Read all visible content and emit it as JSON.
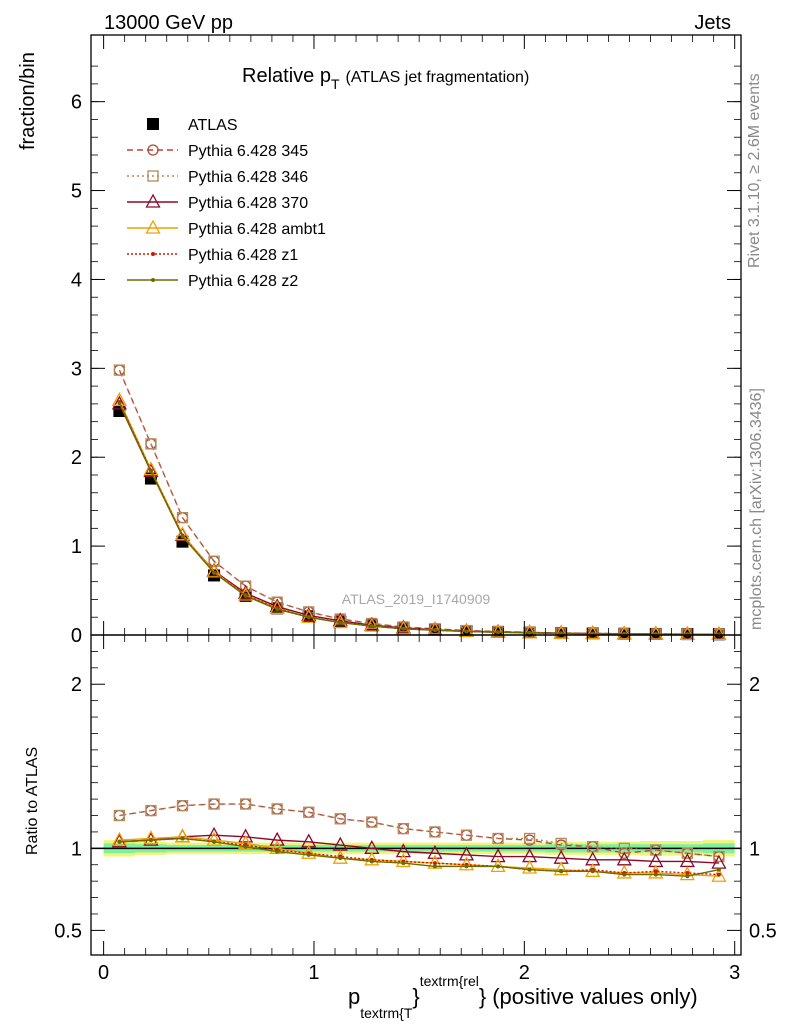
{
  "header": {
    "left": "13000 GeV pp",
    "right": "Jets"
  },
  "side_labels": {
    "rivet": "Rivet 3.1.10, ≥ 2.6M events",
    "mcplots": "mcplots.cern.ch [arXiv:1306.3436]"
  },
  "chart_data": [
    {
      "type": "line",
      "panel": "main",
      "title_main": "Relative p",
      "title_sub": "T",
      "title_extra": "(ATLAS jet fragmentation)",
      "watermark": "ATLAS_2019_I1740909",
      "ylabel": "fraction/bin",
      "ylim": [
        0,
        6.75
      ],
      "yticks": [
        0,
        1,
        2,
        3,
        4,
        5,
        6
      ],
      "yticklabels": [
        "0",
        "1",
        "2",
        "3",
        "4",
        "5",
        "6"
      ],
      "xlim": [
        -0.06,
        3.03
      ],
      "legend_position": "top-left",
      "x": [
        0.075,
        0.225,
        0.375,
        0.525,
        0.675,
        0.825,
        0.975,
        1.125,
        1.275,
        1.425,
        1.575,
        1.725,
        1.875,
        2.025,
        2.175,
        2.325,
        2.475,
        2.625,
        2.775,
        2.925
      ],
      "series": [
        {
          "name": "ATLAS",
          "color": "#000000",
          "marker": "square",
          "dash": "none",
          "values": [
            2.52,
            1.76,
            1.05,
            0.67,
            0.44,
            0.3,
            0.21,
            0.15,
            0.11,
            0.08,
            0.06,
            0.045,
            0.035,
            0.028,
            0.022,
            0.018,
            0.014,
            0.012,
            0.01,
            0.008
          ]
        },
        {
          "name": "Pythia 6.428 345",
          "color": "#b5473a",
          "marker": "circle-open",
          "dash": "6,4",
          "values": [
            2.98,
            2.15,
            1.32,
            0.83,
            0.55,
            0.37,
            0.26,
            0.18,
            0.13,
            0.09,
            0.07,
            0.05,
            0.04,
            0.03,
            0.023,
            0.019,
            0.014,
            0.012,
            0.01,
            0.008
          ]
        },
        {
          "name": "Pythia 6.428 346",
          "color": "#b08a5a",
          "marker": "square-open",
          "dash": "2,3",
          "values": [
            2.98,
            2.15,
            1.32,
            0.83,
            0.55,
            0.37,
            0.26,
            0.18,
            0.13,
            0.09,
            0.07,
            0.05,
            0.04,
            0.03,
            0.023,
            0.018,
            0.014,
            0.012,
            0.01,
            0.008
          ]
        },
        {
          "name": "Pythia 6.428 370",
          "color": "#8b0a2a",
          "marker": "triangle-open",
          "dash": "none",
          "values": [
            2.6,
            1.84,
            1.12,
            0.72,
            0.47,
            0.32,
            0.22,
            0.16,
            0.11,
            0.08,
            0.06,
            0.043,
            0.033,
            0.027,
            0.021,
            0.017,
            0.013,
            0.011,
            0.009,
            0.007
          ]
        },
        {
          "name": "Pythia 6.428 ambt1",
          "color": "#f0a000",
          "marker": "triangle-open",
          "dash": "none",
          "values": [
            2.64,
            1.86,
            1.13,
            0.71,
            0.45,
            0.3,
            0.2,
            0.14,
            0.1,
            0.07,
            0.055,
            0.04,
            0.031,
            0.024,
            0.019,
            0.015,
            0.012,
            0.01,
            0.008,
            0.007
          ]
        },
        {
          "name": "Pythia 6.428 z1",
          "color": "#cc1a00",
          "marker": "dot",
          "dash": "2,2",
          "values": [
            2.62,
            1.85,
            1.12,
            0.7,
            0.45,
            0.3,
            0.2,
            0.14,
            0.1,
            0.07,
            0.055,
            0.04,
            0.031,
            0.024,
            0.019,
            0.015,
            0.012,
            0.01,
            0.008,
            0.007
          ]
        },
        {
          "name": "Pythia 6.428 z2",
          "color": "#6b6b00",
          "marker": "dot",
          "dash": "none",
          "values": [
            2.61,
            1.84,
            1.11,
            0.7,
            0.44,
            0.29,
            0.2,
            0.14,
            0.1,
            0.07,
            0.053,
            0.04,
            0.031,
            0.024,
            0.019,
            0.015,
            0.012,
            0.01,
            0.008,
            0.007
          ]
        }
      ]
    },
    {
      "type": "line",
      "panel": "ratio",
      "ylabel": "Ratio to ATLAS",
      "ylim": [
        0.35,
        2.3
      ],
      "yticks": [
        0.5,
        1,
        2
      ],
      "yticklabels": [
        "0.5",
        "1",
        "2"
      ],
      "xlim": [
        -0.06,
        3.03
      ],
      "xticks": [
        0,
        1,
        2,
        3
      ],
      "xticklabels": [
        "0",
        "1",
        "2",
        "3"
      ],
      "xlabel_main": "p",
      "xlabel_sub": "textrm{T",
      "xlabel_sup": "textrm{rel",
      "xlabel_brace1": "}",
      "xlabel_brace2": "}",
      "xlabel_rest": "(positive values only)",
      "band_inner_color": "#7ff0a0",
      "band_outer_color": "#f0f57a",
      "x": [
        0.075,
        0.225,
        0.375,
        0.525,
        0.675,
        0.825,
        0.975,
        1.125,
        1.275,
        1.425,
        1.575,
        1.725,
        1.875,
        2.025,
        2.175,
        2.325,
        2.475,
        2.625,
        2.775,
        2.925
      ],
      "band_inner": [
        0.03,
        0.025,
        0.02,
        0.02,
        0.02,
        0.02,
        0.02,
        0.02,
        0.02,
        0.02,
        0.02,
        0.02,
        0.02,
        0.02,
        0.025,
        0.025,
        0.025,
        0.025,
        0.025,
        0.03
      ],
      "band_outer": [
        0.05,
        0.04,
        0.035,
        0.035,
        0.035,
        0.035,
        0.035,
        0.035,
        0.035,
        0.035,
        0.035,
        0.035,
        0.035,
        0.035,
        0.04,
        0.04,
        0.04,
        0.045,
        0.045,
        0.05
      ],
      "series": [
        {
          "name": "Pythia 6.428 345",
          "color": "#b5473a",
          "marker": "circle-open",
          "dash": "6,4",
          "values": [
            1.2,
            1.23,
            1.26,
            1.27,
            1.27,
            1.24,
            1.22,
            1.18,
            1.16,
            1.12,
            1.1,
            1.08,
            1.06,
            1.05,
            1.02,
            1.01,
            0.97,
            0.99,
            0.97,
            0.95
          ]
        },
        {
          "name": "Pythia 6.428 346",
          "color": "#b08a5a",
          "marker": "square-open",
          "dash": "2,3",
          "values": [
            1.2,
            1.23,
            1.26,
            1.27,
            1.27,
            1.24,
            1.22,
            1.18,
            1.16,
            1.12,
            1.1,
            1.08,
            1.06,
            1.06,
            1.03,
            1.01,
            1.0,
            0.99,
            0.97,
            0.95
          ]
        },
        {
          "name": "Pythia 6.428 370",
          "color": "#8b0a2a",
          "marker": "triangle-open",
          "dash": "none",
          "values": [
            1.04,
            1.05,
            1.07,
            1.08,
            1.07,
            1.05,
            1.04,
            1.02,
            1.0,
            0.98,
            0.97,
            0.96,
            0.95,
            0.95,
            0.94,
            0.93,
            0.93,
            0.92,
            0.92,
            0.91
          ]
        },
        {
          "name": "Pythia 6.428 ambt1",
          "color": "#f0a000",
          "marker": "triangle-open",
          "dash": "none",
          "values": [
            1.05,
            1.06,
            1.07,
            1.05,
            1.03,
            1.0,
            0.97,
            0.94,
            0.93,
            0.92,
            0.91,
            0.9,
            0.89,
            0.88,
            0.87,
            0.86,
            0.85,
            0.85,
            0.84,
            0.83
          ]
        },
        {
          "name": "Pythia 6.428 z1",
          "color": "#cc1a00",
          "marker": "dot",
          "dash": "2,2",
          "values": [
            1.04,
            1.05,
            1.06,
            1.04,
            1.02,
            0.99,
            0.97,
            0.95,
            0.93,
            0.92,
            0.91,
            0.9,
            0.89,
            0.87,
            0.86,
            0.87,
            0.85,
            0.86,
            0.85,
            0.84
          ]
        },
        {
          "name": "Pythia 6.428 z2",
          "color": "#6b6b00",
          "marker": "dot",
          "dash": "none",
          "values": [
            1.04,
            1.05,
            1.06,
            1.04,
            1.01,
            0.98,
            0.96,
            0.94,
            0.92,
            0.91,
            0.89,
            0.89,
            0.89,
            0.87,
            0.86,
            0.86,
            0.84,
            0.84,
            0.83,
            0.87
          ]
        }
      ]
    }
  ]
}
